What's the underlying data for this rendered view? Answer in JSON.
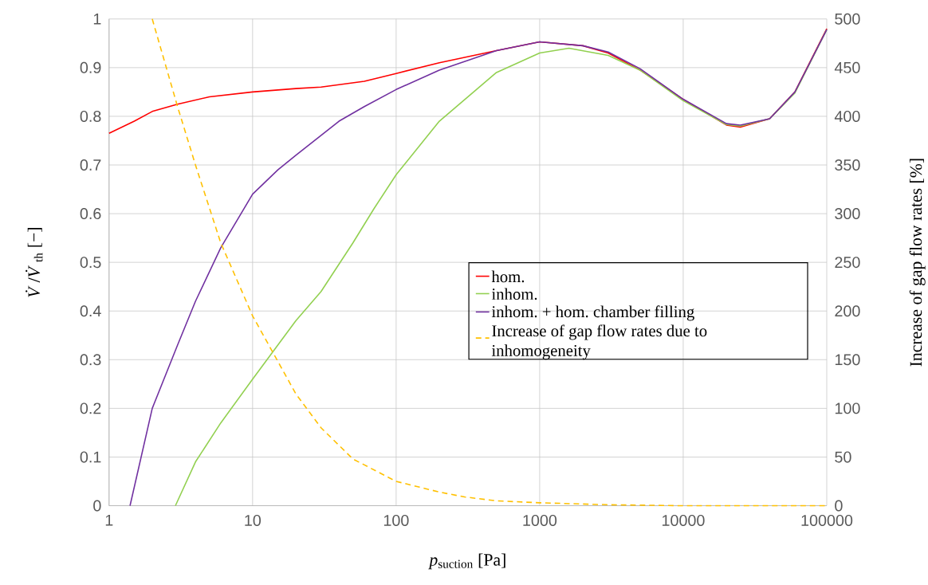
{
  "chart_data": {
    "type": "line",
    "xlabel": "*p*$_{suction}$ [Pa]",
    "ylabel": "*V̇*/*V̇*$_{th}$ [−]",
    "y2label": "Increase of gap flow rates [%]",
    "log": "x",
    "grid": true,
    "legend": "right",
    "xlim": [
      1,
      100000
    ],
    "xticks": [
      1,
      10,
      100,
      1000,
      10000,
      100000
    ],
    "ylim": [
      0,
      1
    ],
    "yticks": [
      0,
      0.1,
      0.2,
      0.3,
      0.4,
      0.5,
      0.6,
      0.7,
      0.8,
      0.9,
      1
    ],
    "y2lim": [
      0,
      500
    ],
    "y2ticks": [
      0,
      50,
      100,
      150,
      200,
      250,
      300,
      350,
      400,
      450,
      500
    ],
    "series": [
      {
        "name": "hom.",
        "color": "#ff0000",
        "x": [
          1,
          1.5,
          2,
          3,
          5,
          10,
          20,
          30,
          60,
          100,
          200,
          500,
          1000,
          2000,
          3000,
          5000,
          10000,
          20000,
          25000,
          40000,
          60000,
          100000
        ],
        "values": [
          0.765,
          0.79,
          0.81,
          0.825,
          0.84,
          0.85,
          0.857,
          0.86,
          0.872,
          0.888,
          0.91,
          0.935,
          0.953,
          0.945,
          0.93,
          0.895,
          0.835,
          0.782,
          0.778,
          0.795,
          0.85,
          0.98
        ]
      },
      {
        "name": "inhom.",
        "color": "#92d050",
        "x": [
          2.9,
          4,
          6,
          10,
          20,
          30,
          50,
          70,
          100,
          200,
          500,
          1000,
          1600,
          3000,
          5000,
          10000,
          20000,
          25000,
          40000,
          60000,
          100000
        ],
        "values": [
          0,
          0.09,
          0.17,
          0.26,
          0.38,
          0.44,
          0.54,
          0.61,
          0.68,
          0.79,
          0.89,
          0.93,
          0.94,
          0.925,
          0.895,
          0.832,
          0.783,
          0.78,
          0.795,
          0.848,
          0.978
        ]
      },
      {
        "name": "inhom. + hom. chamber filling",
        "color": "#7030a0",
        "x": [
          1.4,
          2,
          3,
          4,
          6,
          10,
          15,
          20,
          40,
          60,
          100,
          200,
          500,
          1000,
          2000,
          3000,
          5000,
          10000,
          20000,
          25000,
          40000,
          60000,
          100000
        ],
        "values": [
          0,
          0.2,
          0.33,
          0.42,
          0.53,
          0.64,
          0.69,
          0.72,
          0.79,
          0.82,
          0.855,
          0.895,
          0.935,
          0.953,
          0.945,
          0.932,
          0.898,
          0.835,
          0.785,
          0.782,
          0.795,
          0.85,
          0.978
        ]
      },
      {
        "name": "Increase of gap flow rates due to inhomogeneity",
        "color": "#ffc000",
        "line_style": "dashed",
        "axis": "y2",
        "x": [
          2,
          3,
          4,
          6,
          10,
          20,
          30,
          50,
          100,
          200,
          300,
          500,
          1000,
          3000,
          10000,
          100000
        ],
        "values": [
          500,
          410,
          350,
          270,
          195,
          115,
          80,
          48,
          25,
          14,
          9,
          5,
          3,
          1,
          0,
          0
        ]
      }
    ]
  }
}
